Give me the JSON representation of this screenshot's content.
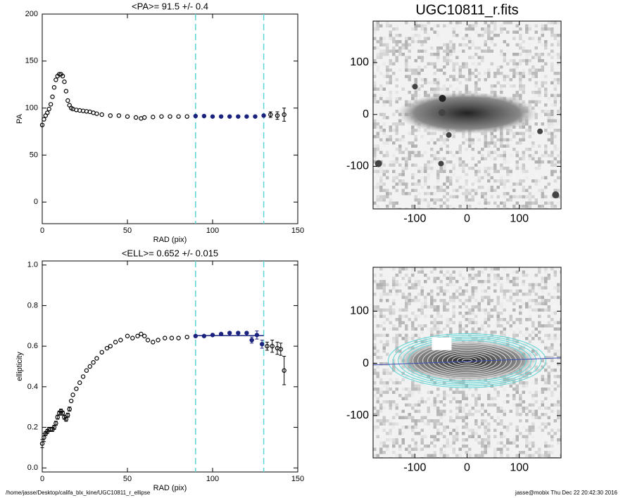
{
  "chart_data": [
    {
      "type": "scatter",
      "title": "<PA>=  91.5 +/-   0.4",
      "x_label": "RAD (pix)",
      "y_label": "PA",
      "x": [
        0,
        1,
        2,
        3,
        4,
        5,
        6,
        7,
        8,
        9,
        10,
        11,
        12,
        13,
        14,
        15,
        16,
        17,
        18,
        20,
        22,
        24,
        26,
        28,
        30,
        32,
        35,
        40,
        45,
        50,
        55,
        58,
        60,
        65,
        70,
        75,
        80,
        85,
        90,
        95,
        100,
        105,
        110,
        115,
        120,
        125,
        130,
        134,
        138,
        142
      ],
      "y": [
        82,
        88,
        92,
        95,
        99,
        104,
        112,
        122,
        130,
        134,
        136,
        136,
        134,
        128,
        118,
        108,
        103,
        100,
        99,
        98,
        97.5,
        97,
        96.5,
        96,
        95,
        94,
        93,
        92,
        92,
        91,
        90,
        89,
        90,
        90.5,
        91,
        91,
        91,
        91,
        91.5,
        91.5,
        91,
        91,
        91,
        91,
        91,
        91,
        92,
        93,
        92,
        93
      ],
      "errors": [
        1,
        1,
        1,
        1,
        1,
        1,
        1,
        1,
        1,
        1,
        1,
        1,
        1,
        1,
        1,
        1,
        1,
        1,
        1,
        0.5,
        0.5,
        0.5,
        0.5,
        0.5,
        0.5,
        0.5,
        0.5,
        0.5,
        0.5,
        0.5,
        0.5,
        0.5,
        0.5,
        0.5,
        0.5,
        0.5,
        0.5,
        0.5,
        0.5,
        0.5,
        0.5,
        0.5,
        0.5,
        0.5,
        0.5,
        0.5,
        1,
        3,
        4,
        7
      ],
      "xlim": [
        0,
        150
      ],
      "xticks": [
        0,
        50,
        100,
        150
      ],
      "ylim": [
        -23,
        200
      ],
      "yticks": [
        0,
        50,
        100,
        150,
        200
      ],
      "vlines": [
        90,
        130
      ],
      "vline_color": "#5cd6d6",
      "color": "#000000",
      "highlight_color": "#1a237e"
    },
    {
      "type": "scatter",
      "title": "<ELL>= 0.652 +/-  0.015",
      "x_label": "RAD (pix)",
      "y_label": "ellipticity",
      "x": [
        0,
        1,
        2,
        3,
        4,
        5,
        6,
        7,
        8,
        9,
        10,
        11,
        12,
        13,
        14,
        15,
        16,
        17,
        18,
        20,
        22,
        24,
        26,
        28,
        30,
        32,
        35,
        38,
        40,
        43,
        46,
        50,
        53,
        56,
        58,
        60,
        62,
        65,
        68,
        72,
        76,
        80,
        85,
        90,
        95,
        100,
        105,
        110,
        115,
        120,
        123,
        126,
        129,
        132,
        135,
        138,
        140,
        142
      ],
      "y": [
        0.12,
        0.15,
        0.17,
        0.18,
        0.19,
        0.19,
        0.19,
        0.2,
        0.22,
        0.25,
        0.27,
        0.28,
        0.27,
        0.25,
        0.24,
        0.26,
        0.29,
        0.33,
        0.36,
        0.39,
        0.42,
        0.45,
        0.48,
        0.5,
        0.52,
        0.54,
        0.57,
        0.59,
        0.6,
        0.62,
        0.63,
        0.65,
        0.64,
        0.65,
        0.66,
        0.65,
        0.63,
        0.62,
        0.63,
        0.64,
        0.64,
        0.64,
        0.645,
        0.65,
        0.65,
        0.655,
        0.66,
        0.665,
        0.665,
        0.665,
        0.63,
        0.655,
        0.61,
        0.6,
        0.6,
        0.59,
        0.585,
        0.48
      ],
      "errors": [
        0.02,
        0.02,
        0.01,
        0.01,
        0.01,
        0.01,
        0.01,
        0.01,
        0.01,
        0.01,
        0.01,
        0.01,
        0.01,
        0.01,
        0.01,
        0.01,
        0.01,
        0.005,
        0.005,
        0.005,
        0.005,
        0.005,
        0.005,
        0.005,
        0.005,
        0.005,
        0.005,
        0.005,
        0.005,
        0.005,
        0.005,
        0.005,
        0.005,
        0.005,
        0.005,
        0.005,
        0.005,
        0.005,
        0.005,
        0.005,
        0.005,
        0.005,
        0.005,
        0.005,
        0.005,
        0.005,
        0.005,
        0.005,
        0.005,
        0.005,
        0.015,
        0.02,
        0.02,
        0.02,
        0.03,
        0.03,
        0.03,
        0.07
      ],
      "xlim": [
        0,
        150
      ],
      "xticks": [
        0,
        50,
        100,
        150
      ],
      "ylim": [
        -0.02,
        1.02
      ],
      "yticks": [
        {
          "value": 0,
          "label": "0.0"
        },
        0.2,
        0.4,
        0.6,
        0.8,
        {
          "value": 1,
          "label": "1.0"
        }
      ],
      "vlines": [
        90,
        130
      ],
      "vline_color": "#5cd6d6",
      "fit_line": 0.652,
      "fit_color": "#1a237e",
      "color": "#000000",
      "highlight_color": "#1a237e"
    },
    {
      "type": "image",
      "title": "UGC10811_r.fits",
      "xlim": [
        -180,
        180
      ],
      "xticks": [
        -100,
        0,
        100
      ],
      "ylim": [
        -182,
        180
      ],
      "yticks": [
        -100,
        0,
        100
      ]
    },
    {
      "type": "image",
      "overlay": true,
      "xlim": [
        -180,
        180
      ],
      "xticks": [
        -100,
        0,
        100
      ],
      "ylim": [
        -181,
        184
      ],
      "yticks": [
        -100,
        0,
        100
      ]
    }
  ],
  "footer": {
    "left": "/home/jasse/Desktop/califa_blx_kine/UGC10811_r_ellipse",
    "right": "jasse@mobix  Thu Dec 22 20:42:30 2016"
  }
}
